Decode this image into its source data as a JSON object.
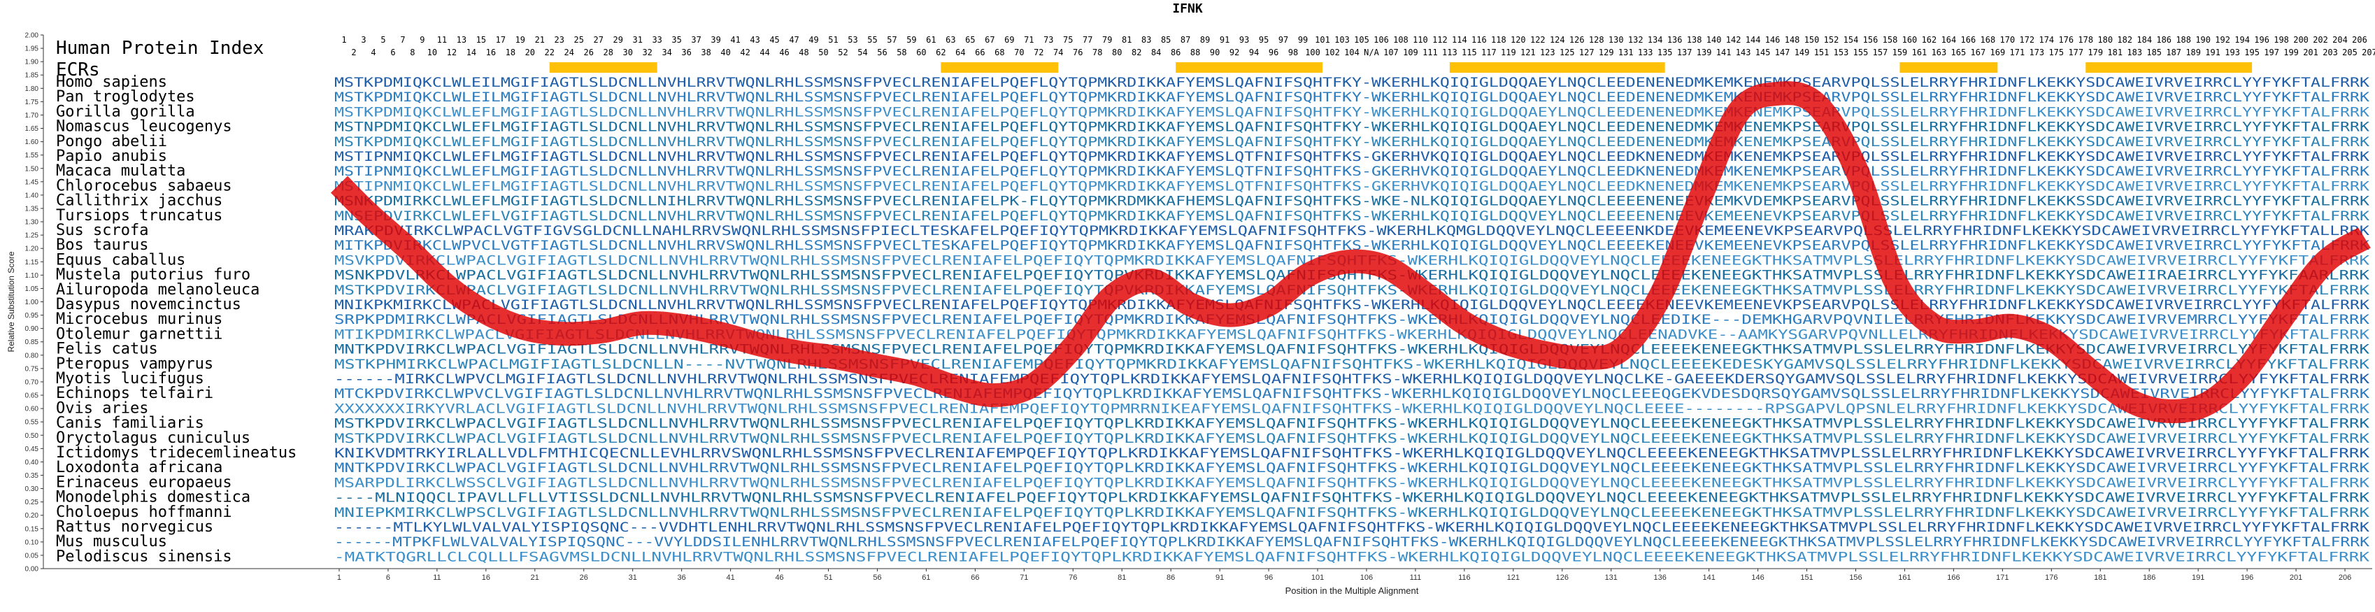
{
  "chart_data": {
    "type": "line",
    "title": "IFNK",
    "xlabel": "Position in the Multiple Alignment",
    "ylabel": "Relative Substitution Score",
    "xlim": [
      1,
      208
    ],
    "ylim": [
      0,
      2.0
    ],
    "y_ticks": [
      "0.00",
      "0.05",
      "0.10",
      "0.15",
      "0.20",
      "0.25",
      "0.30",
      "0.35",
      "0.40",
      "0.45",
      "0.50",
      "0.55",
      "0.60",
      "0.65",
      "0.70",
      "0.75",
      "0.80",
      "0.85",
      "0.90",
      "0.95",
      "1.00",
      "1.05",
      "1.10",
      "1.15",
      "1.20",
      "1.25",
      "1.30",
      "1.35",
      "1.40",
      "1.45",
      "1.50",
      "1.55",
      "1.60",
      "1.65",
      "1.70",
      "1.75",
      "1.80",
      "1.85",
      "1.90",
      "1.95",
      "2.00"
    ],
    "x_ticks": [
      1,
      6,
      11,
      16,
      21,
      26,
      31,
      36,
      41,
      46,
      51,
      56,
      61,
      66,
      71,
      76,
      81,
      86,
      91,
      96,
      101,
      106,
      111,
      116,
      121,
      126,
      131,
      136,
      141,
      146,
      151,
      156,
      161,
      166,
      171,
      176,
      181,
      186,
      191,
      196,
      201,
      206
    ],
    "index_label": "Human Protein Index",
    "index_top": [
      "1",
      "3",
      "5",
      "7",
      "9",
      "11",
      "13",
      "15",
      "17",
      "19",
      "21",
      "23",
      "25",
      "27",
      "29",
      "31",
      "33",
      "35",
      "37",
      "39",
      "41",
      "43",
      "45",
      "47",
      "49",
      "51",
      "53",
      "55",
      "57",
      "59",
      "61",
      "63",
      "65",
      "67",
      "69",
      "71",
      "73",
      "75",
      "77",
      "79",
      "81",
      "83",
      "85",
      "87",
      "89",
      "91",
      "93",
      "95",
      "97",
      "99",
      "101",
      "103",
      "105",
      "106",
      "108",
      "110",
      "112",
      "114",
      "116",
      "118",
      "120",
      "122",
      "124",
      "126",
      "128",
      "130",
      "132",
      "134",
      "136",
      "138",
      "140",
      "142",
      "144",
      "146",
      "148",
      "150",
      "152",
      "154",
      "156",
      "158",
      "160",
      "162",
      "164",
      "166",
      "168",
      "170",
      "172",
      "174",
      "176",
      "178",
      "180",
      "182",
      "184",
      "186",
      "188",
      "190",
      "192",
      "194",
      "196",
      "198",
      "200",
      "202",
      "204",
      "206"
    ],
    "index_bottom": [
      "2",
      "4",
      "6",
      "8",
      "10",
      "12",
      "14",
      "16",
      "18",
      "20",
      "22",
      "24",
      "26",
      "28",
      "30",
      "32",
      "34",
      "36",
      "38",
      "40",
      "42",
      "44",
      "46",
      "48",
      "50",
      "52",
      "54",
      "56",
      "58",
      "60",
      "62",
      "64",
      "66",
      "68",
      "70",
      "72",
      "74",
      "76",
      "78",
      "80",
      "82",
      "84",
      "86",
      "88",
      "90",
      "92",
      "94",
      "96",
      "98",
      "100",
      "102",
      "104",
      "N/A",
      "107",
      "109",
      "111",
      "113",
      "115",
      "117",
      "119",
      "121",
      "123",
      "125",
      "127",
      "129",
      "131",
      "133",
      "135",
      "137",
      "139",
      "141",
      "143",
      "145",
      "147",
      "149",
      "151",
      "153",
      "155",
      "157",
      "159",
      "161",
      "163",
      "165",
      "167",
      "169",
      "171",
      "173",
      "175",
      "177",
      "179",
      "181",
      "183",
      "185",
      "187",
      "189",
      "191",
      "193",
      "195",
      "197",
      "199",
      "201",
      "203",
      "205",
      "207"
    ],
    "ecr_label": "ECRs",
    "ecr_regions": [
      [
        23,
        33
      ],
      [
        63,
        74
      ],
      [
        87,
        101
      ],
      [
        115,
        136
      ],
      [
        161,
        170
      ],
      [
        180,
        196
      ]
    ],
    "species": [
      "Homo sapiens",
      "Pan troglodytes",
      "Gorilla gorilla",
      "Nomascus leucogenys",
      "Pongo abelii",
      "Papio anubis",
      "Macaca mulatta",
      "Chlorocebus sabaeus",
      "Callithrix jacchus",
      "Tursiops truncatus",
      "Sus scrofa",
      "Bos taurus",
      "Equus caballus",
      "Mustela putorius furo",
      "Ailuropoda melanoleuca",
      "Dasypus novemcinctus",
      "Microcebus murinus",
      "Otolemur garnettii",
      "Felis catus",
      "Pteropus vampyrus",
      "Myotis lucifugus",
      "Echinops telfairi",
      "Ovis aries",
      "Canis familiaris",
      "Oryctolagus cuniculus",
      "Ictidomys tridecemlineatus",
      "Loxodonta africana",
      "Erinaceus europaeus",
      "Monodelphis domestica",
      "Choloepus hoffmanni",
      "Rattus norvegicus",
      "Mus musculus",
      "Pelodiscus sinensis"
    ],
    "sequences": [
      "MSTKPDMIQKCLWLEILMGIFIAGTLSLDCNLLNVHLRRVTWQNLRHLSSMSNSFPVECLRENIAFELPQEFLQYTQPMKRDIKKAFYEMSLQAFNIFSQHTFKY-WKERHLKQIQIGLDQQAEYLNQCLEEDENENEDMKEMKENEMKPSEARVPQLSSLELRRYFHRIDNFLKEKKYSDCAWEIVRVEIRRCLYYFYKFTALFRRK",
      "MSTKPDMIQKCLWLEILMGIFIAGTLSLDCNLLNVHLRRVTWQNLRHLSSMSNSFPVECLRENIAFELPQEFLQYTQPMKRDIKKAFYEMSLQAFNIFSQHTFKY-WKERHLKQIQIGLDQQAEYLNQCLEEDENENEDMKEMKENEMKPSEARVPQLSSLELRRYFHRIDNFLKEKKYSDCAWEIVRVEIRRCLYYFYKFTALFRRK",
      "MSTKPDMIQKCLWLEFLMGIFIAGTLSLDCNLLNVHLRRVTWQNLRHLSSMSNSFPVECLRENIAFELPQEFLQYTQPMKRDIKKAFYEMSLQAFNIFSQHTFKY-WKERHLKQIQIGLDQQAEYLNQCLEEDENENEDMKEMKENEMKPSEARVPQLSSLELRRYFHRIDNFLKEKKYSDCAWEIVRVEIRRCLYYFYKFTALFRRK",
      "MSTNPDMIQKCLWLEFLMGIFIAGTLSLDCNLLNVHLRRVTWQNLRHLSSMSNSFPVECLRENIAFELPQEFLQYTQPMKRDIKKAFYEMSLQAFNIFSQHTFKY-WKERHLKQIQIGLDQQAEYLNQCLEEDENENEDMKEMKENEMKPSEARVPQLSSLELRRYFHRIDNFLKEKKYSDCAWEIVRVEIRRCLYYFYKFTALFRRK",
      "MSTKPDMIQKCLWLEFLMGIFIAGTLSLDCNLLNVHLRRVTWQNLRHLSSMSNSFPVECLRENIAFELPQEFLQYTQPMKRDIKKAFYEMSLQAFNIFSQHTFKY-WKERHLKQIQIGLDQQAEYLNQCLEEDENENEDMKEMKENEMKPSEARVPQLSSLELRRYFHRIDNFLKEKKYSDCAWEIVRVEIRRCLYYFYKFTALFRRK",
      "MSTIPNMIQKCLWLEFLMGIFIAGTLSLDCNLLNVHLRRVTWQNLRHLSSMSNSFPVECLRENIAFELPQEFLQYTQPMKRDIKKAFYEMSLQTFNIFSQHTFKS-GKERHVKQIQIGLDQQAEYLNQCLEEDKNENEDMKEMKENEMKPSEARVPQLSSLELRRYFHRIDNFLKEKKYSDCAWEIVRVEIRRCLYYFYKFTALFRRK",
      "MSTIPNMIQKCLWLEFLMGIFIAGTLSLDCNLLNVHLRRVTWQNLRHLSSMSNSFPVECLRENIAFELPQEFLQYTQPMKRDIKKAFYEMSLQTFNIFSQHTFKS-GKERHVKQIQIGLDQQAEYLNQCLEEDKNENEDMKEMKENEMKPSEARVPQLSSLELRRYFHRIDNFLKEKKYSDCAWEIVRVEIRRCLYYFYKFTALFRRK",
      "MSTIPNMIQKCLWLEFLMGIFIAGTLSLDCNLLNVHLRRVTWQNLRHLSSMSNSFPVECLRENIAFELPQEFLQYTQPMKRDIKKAFYEMSLQTFNIFSQHTFKS-GKERHVKQIQIGLDQQAEYLNQCLEEDKNENEDMKEMKENEMKPSEARVPQLSSLELRRYFHRIDNFLKEKKYSDCAWEIVRVEIRRCLYYFYKFTALFRRK",
      "MSNKPDMIRKCLWLEFLMGIFIAGTLSLDCNLLNIHLRRVTWQNLRHLSSMSNSFPVECLRENIAFELPK-FLQYTQPMKRDMKKAFHEMSLQAFNIFSQHTFKS-WKE-NLKQIQIGLDQQAEYLNQCLEEEENENEEVKEMKVDEMKPSEARVPQLSSLELRRYFHRIDNFLKEKKSSDCAWEIVRVEIRRCLYYFYKFTALFRRK",
      "MNSEPDVIRKCLWLEFLVGIFIAGTLSLDCNLLNVHLRRVTWQNLRHLSSMSNSFPVECLRENIAFELPQEFLQYTQPMKRDIKKAFYEMSLQAFNIFSQHTFKS-WKERHLKQIQIGLDQQVEYLNQCLEEEENENEEVKEMEENEVKPSEARVPQLSSLELRRYFHRIDNFLKEKKYSDCAWEIVRVEIRRCLYYFYKFTALFRRK",
      "MRAKPDVIRKCLWPACLVGTFIGVSGLDCNLLNAHLRRVSWQNLRHLSSMSNSFPIECLTESKAFELPQEFIQYTQPMKRDIKKAFYEMSLQAFNIFSQHTFKS-WKERHLKQMGLDQQVEYLNQCLEEEENKDEEVKEMEENEVKPSEARVPQLSSLELRRYFHRIDNFLKEKKYSDCAWEIVRVEIRRCLYYFYKFTALLRRK",
      "MITKPDVIRKCLWPVCLVGTFIAGTLSLDCNLLNVHLRRVSWQNLRHLSSMSNSFPVECLTESKAFELPQEFIQYTQPMKRDIKKAFYEMSLQAFNIFSQHTFKS-WKERHLKQIQIGLDQQVEYLNQCLEEEEKENEEVKEMEENEVKPSEARVPQLSSLELRRYFHRIDNFLKEKKYSDCAWEIVRVEIRRCLYYFYKFTALFRRK",
      "MSVKPDVIRKCLWPACLVGIFIAGTLSLDCNLLNVHLRRVTWQNLRHLSSMSNSFPVECLRENIAFELPQEFIQYTQPMKRDIKKAFYEMSLQAFNIFSQHTFKS-WKERHLKQIQIGLDQQVEYLNQCLEEEEKENEEGKTHKSATMVPLSSLELRRYFHRIDNFLKEKKYSDCAWEIVRVEIRRCLYYFYKFTALFRRK",
      "MSNKPDVLRKCLWPACLVGIFIAGTLSLDCNLLNVHLRRVTWQNLRHLSSMSNSFPVECLRENIAFELPQEFIQYTQPVKRDIKKAFYEMSLQAFNIFSQHTFKS-WKERHLKQIQIGLDQQVEYLNQCLEEEEKENEEGKTHKSATMVPLSSLELRRYFHRIDNFLKEKKYSDCAWEIIRAEIRRCLYYFYKFAARLRRK",
      "MSTKPDVIRKCLWPACLVGIFIAGTLSLDCNLLNVHLRRVTWQNLRHLSSMSNSFPVECLRENIAFELPQEFIQYTQPVKRDIKKAFYEMSLQAFNIFSQHTFKS-WKERHLKQIQIGLDQQVEYLNQCLEEEEKENEEGKTHKSATMVPLSSLELRRYFHRIDNFLKEKKYSDCAWEIVRVEIRRCLYYFYKFTALFRRK",
      "MNIKPKMIRKCLWPACLVGIFIAGTLSLDCNLLNVHLRRVTWQNLRHLSSMSNSFPVECLRENIAFELPQEFIQYTQPMKRDIKKAFYEMSLQAFNIFSQHTFKS-WKERHLKQIQIGLDQQVEYLNQCLEEEEKENEEVKEMEENEVKPSEARVPQLSSLELRRYFHRIDNFLKEKKYSDCAWEIVRVEIRRCLYYFYKFTALFRRK",
      "SRPKPDMIRKCLWPACLVGIFIAGTLSLDCNLLNVHLRRVTWQNLRHLSSMSNSFPVECLRENIAFELPQEFIQYTQPMKRDIKKAFYEMSLQAFNIFSQHTFKS-WKERHLKQIQIGLDQQVEYLNQCLEEDIKE---DEMKHGARVPQVNILELRRYFHRIDNFLKEKKYSDCAWEIVRVEMRRCLYYFYKFTALFRRK",
      "MTIKPDMIRKCLWPACLVGIFIAGTLSLDCNLLNVHLRRVTWQNLRHLSSMSNSFPVECLRENIAFELPQEFIQYTQPMKRDIKKAFYEMSLQAFNIFSQHTFKS-WKERHLKQIQIGLDQQVEYLNQCLEENADVKE--AAMKYSGARVPQVNLLELRRYFHRIDNFLKEKKYSDCAWEIVRVEIRRCLYYFYKFTALFRRK",
      "MNTKPDVIRKCLWPACLVGIFIAGTLSLDCNLLNVHLRRVTWQNLRHLSSMSNSFPVECLRENIAFELPQEFIQYTQPMKRDIKKAFYEMSLQAFNIFSQHTFKS-WKERHLKQIQIGLDQQVEYLNQCLEEEEKENEEGKTHKSATMVPLSSLELRRYFHRIDNFLKEKKYSDCAWEIVRVEIRRCLYYFYKFTALFRRK",
      "MSTKPHMIRKCLWPACLMGIFIAGTLSLDCNLLN----NVTWQNLRHLSSMSNSFPVECLRENIAFEMPQEFIQYTQPMKRDIKKAFYEMSLQAFNIFSQHTFKS-WKERHLKQIQIGLDQQVEYLNQCLEEEEKEDESKYGAMVSQLSSLELRRYFHRIDNFLKEKKYSDCAWEIVRVEIRRCLYYFYKFTALFRRK",
      "------MIRKCLWPVCLMGIFIAGTLSLDCNLLNVHLRRVTWQNLRHLSSMSNSFPVECLRENIAFEMPQEFIQYTQPLKRDIKKAFYEMSLQAFNIFSQHTFKS-WKERHLKQIQIGLDQQVEYLNQCLKE-GAEEEKDERSQYGAMVSQLSSLELRRYFHRIDNFLKEKKYSDCAWEIVRVEIRRCLYYFYKFTALFRRK",
      "MTCKPDVIRKCLWPVCLVGIFIAGTLSLDCNLLNVHLRRVTWQNLRHLSSMSNSFPVECLRENIAFEMPQEFIQYTQPLKRDIKKAFYEMSLQAFNIFSQHTFKS-WKERHLKQIQIGLDQQVEYLNQCLEEEQGEKVDESDQRSQYGAMVSQLSSLELRRYFHRIDNFLKEKKYSDCAWEIVRVEIRRCLYYFYKFTALFRRK",
      "XXXXXXXIRKYVRLACLVGIFIAGTLSLDCNLLNVHLRRVTWQNLRHLSSMSNSFPVECLRENIAFEMPQEFIQYTQPMRRNIKEAFYEMSLQAFNIFSQHTFKS-WKERHLKQIQIGLDQQVEYLNQCLEEEE--------RPSGAPVLQPSNLELRRYFHRIDNFLKEKKYSDCAWEIVRVEIRRCLYYFYKFTALFRRK",
      "MSTKPDVIRKCLWPACLVGIFIAGTLSLDCNLLNVHLRRVTWQNLRHLSSMSNSFPVECLRENIAFELPQEFIQYTQPLKRDIKKAFYEMSLQAFNIFSQHTFKS-WKERHLKQIQIGLDQQVEYLNQCLEEEEKENEEGKTHKSATMVPLSSLELRRYFHRIDNFLKEKKYSDCAWEIVRVEIRRCLYYFYKFTALFRRK",
      "MSTKPDVIRKCLWPACLVGIFIAGTLSLDCNLLNVHLRRVTWQNLRHLSSMSNSFPVECLRENIAFELPQEFIQYTQPLKRDIKKAFYEMSLQAFNIFSQHTFKS-WKERHLKQIQIGLDQQVEYLNQCLEEEEKENEEGKTHKSATMVPLSSLELRRYFHRIDNFLKEKKYSDCAWEIVRVEIRRCLYYFYKFTALFRRK",
      "KNIKVDMTRKYIRLALLVDLFMTHICQECNLLEVHLRRVSWQNLRHLSSMSNSFPVECLRENIAFEMPQEFIQYTQPLKRDIKKAFYEMSLQAFNIFSQHTFKS-WKERHLKQIQIGLDQQVEYLNQCLEEEEKENEEGKTHKSATMVPLSSLELRRYFHRIDNFLKEKKYSDCAWEIVRVEIRRCLYYFYKFTALFRRK",
      "MNTKPDVIRKCLWPACLVGIFIAGTLSLDCNLLNVHLRRVTWQNLRHLSSMSNSFPVECLRENIAFELPQEFIQYTQPLKRDIKKAFYEMSLQAFNIFSQHTFKS-WKERHLKQIQIGLDQQVEYLNQCLEEEEKENEEGKTHKSATMVPLSSLELRRYFHRIDNFLKEKKYSDCAWEIVRVEIRRCLYYFYKFTALFRRK",
      "MSARPDLIRKCLWSSCLVGIFIAGTLSLDCNLLNVHLRRVTWQNLRHLSSMSNSFPVECLRENIAFELPQEFIQYTQPLKRDIKKAFYEMSLQAFNIFSQHTFKS-WKERHLKQIQIGLDQQVEYLNQCLEEEEKENEEGKTHKSATMVPLSSLELRRYFHRIDNFLKEKKYSDCAWEIVRVEIRRCLYYFYKFTALFRRK",
      "----MLNIQQCLIPAVLLFLLVTISSLDCNLLNVHLRRVTWQNLRHLSSMSNSFPVECLRENIAFELPQEFIQYTQPLKRDIKKAFYEMSLQAFNIFSQHTFKS-WKERHLKQIQIGLDQQVEYLNQCLEEEEKENEEGKTHKSATMVPLSSLELRRYFHRIDNFLKEKKYSDCAWEIVRVEIRRCLYYFYKFTALFRRK",
      "MNIEPKMIRKCLWPSCLVGIFIAGTLSLDCNLLNVHLRRVTWQNLRHLSSMSNSFPVECLRENIAFELPQEFIQYTQPLKRDIKKAFYEMSLQAFNIFSQHTFKS-WKERHLKQIQIGLDQQVEYLNQCLEEEEKENEEGKTHKSATMVPLSSLELRRYFHRIDNFLKEKKYSDCAWEIVRVEIRRCLYYFYKFTALFRRK",
      "------MTLKYLWLVALVALYISPIQSQNC---VVDHTLENHLRRVTWQNLRHLSSMSNSFPVECLRENIAFELPQEFIQYTQPLKRDIKKAFYEMSLQAFNIFSQHTFKS-WKERHLKQIQIGLDQQVEYLNQCLEEEEKENEEGKTHKSATMVPLSSLELRRYFHRIDNFLKEKKYSDCAWEIVRVEIRRCLYYFYKFTALFRRK",
      "------MTPKFLWLVALVALYISPIQSQNC---VVYLDDSILENHLRRVTWQNLRHLSSMSNSFPVECLRENIAFELPQEFIQYTQPLKRDIKKAFYEMSLQAFNIFSQHTFKS-WKERHLKQIQIGLDQQVEYLNQCLEEEEKENEEGKTHKSATMVPLSSLELRRYFHRIDNFLKEKKYSDCAWEIVRVEIRRCLYYFYKFTALFRRK",
      "-MATKTQGRLLCLCQLLLFSAGVMSLDCNLLNVHLRRVTWQNLRHLSSMSNSFPVECLRENIAFELPQEFIQYTQPLKRDIKKAFYEMSLQAFNIFSQHTFKS-WKERHLKQIQIGLDQQVEYLNQCLEEEEKENEEGKTHKSATMVPLSSLELRRYFHRIDNFLKEKKYSDCAWEIVRVEIRRCLYYFYKFTALFRRK"
    ],
    "line_color": "#e00000",
    "series": [
      {
        "x": [
          1,
          4,
          8,
          12,
          16,
          20,
          24,
          28,
          32,
          36,
          40,
          44,
          48,
          52,
          56,
          60,
          64,
          68,
          72,
          76,
          80,
          84,
          88,
          92,
          96,
          100,
          104,
          108,
          112,
          116,
          120,
          124,
          128,
          132,
          136,
          140,
          144,
          148,
          152,
          156,
          160,
          164,
          168,
          172,
          176,
          180,
          184,
          188,
          192,
          196,
          200,
          204,
          208
        ],
        "y": [
          1.44,
          1.33,
          1.2,
          1.06,
          0.96,
          0.9,
          0.88,
          0.89,
          0.92,
          0.91,
          0.88,
          0.84,
          0.81,
          0.79,
          0.76,
          0.73,
          0.68,
          0.65,
          0.69,
          0.83,
          1.02,
          1.08,
          0.99,
          0.95,
          0.99,
          1.1,
          1.15,
          1.13,
          1.03,
          0.92,
          0.85,
          0.81,
          0.79,
          0.82,
          1.02,
          1.38,
          1.71,
          1.78,
          1.74,
          1.5,
          1.08,
          0.91,
          0.89,
          0.91,
          0.86,
          0.74,
          0.63,
          0.59,
          0.62,
          0.75,
          0.96,
          1.15,
          1.24
        ]
      }
    ]
  }
}
